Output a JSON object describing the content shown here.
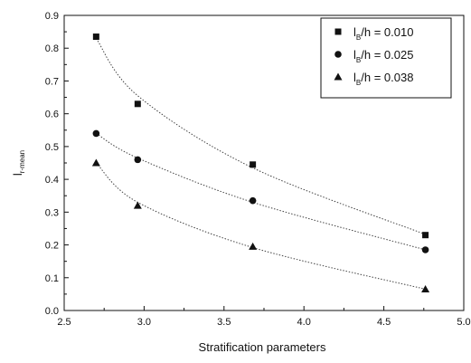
{
  "chart_data": {
    "type": "scatter",
    "xlabel": "Stratification parameters",
    "ylabel": {
      "main": "l",
      "sub": "r-mean"
    },
    "xlim": [
      2.5,
      5.0
    ],
    "ylim": [
      0.0,
      0.9
    ],
    "x_ticks": [
      "2.5",
      "3.0",
      "3.5",
      "4.0",
      "4.5",
      "5.0"
    ],
    "y_ticks": [
      "0.0",
      "0.1",
      "0.2",
      "0.3",
      "0.4",
      "0.5",
      "0.6",
      "0.7",
      "0.8",
      "0.9"
    ],
    "grid": false,
    "legend_position": "top-right",
    "series": [
      {
        "name_prefix": "l",
        "name_sub": "B",
        "name_suffix": "/h = 0.010",
        "marker": "square",
        "x": [
          2.7,
          2.96,
          3.68,
          4.76
        ],
        "y": [
          0.835,
          0.63,
          0.445,
          0.23
        ],
        "fit_y": [
          0.83,
          0.655,
          0.435,
          0.232
        ]
      },
      {
        "name_prefix": "l",
        "name_sub": "B",
        "name_suffix": "/h = 0.025",
        "marker": "circle",
        "x": [
          2.7,
          2.96,
          3.68,
          4.76
        ],
        "y": [
          0.54,
          0.46,
          0.335,
          0.185
        ],
        "fit_y": [
          0.54,
          0.465,
          0.33,
          0.185
        ]
      },
      {
        "name_prefix": "l",
        "name_sub": "B",
        "name_suffix": "/h = 0.038",
        "marker": "triangle",
        "x": [
          2.7,
          2.96,
          3.68,
          4.76
        ],
        "y": [
          0.45,
          0.32,
          0.195,
          0.065
        ],
        "fit_y": [
          0.45,
          0.33,
          0.192,
          0.065
        ]
      }
    ]
  }
}
